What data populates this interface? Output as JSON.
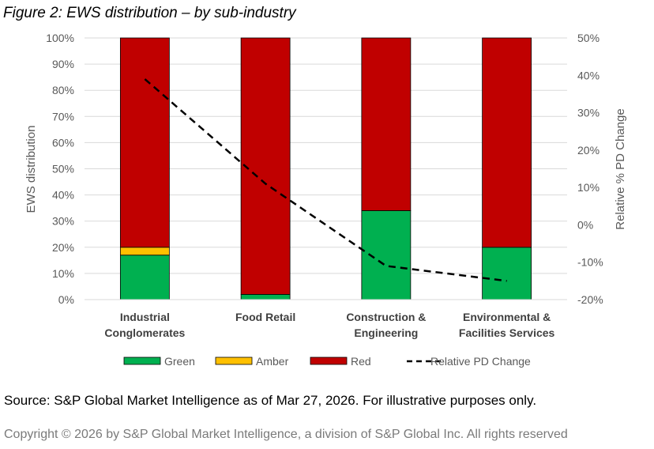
{
  "figure_title": "Figure 2: EWS distribution – by sub-industry",
  "source_text": "Source: S&P Global Market Intelligence as of Mar 27, 2026. For illustrative purposes only.",
  "copyright_text": "Copyright © 2026 by S&P Global Market Intelligence, a division of S&P Global Inc. All rights reserved",
  "chart_data": {
    "type": "bar",
    "stacked": true,
    "title": "Figure 2: EWS distribution – by sub-industry",
    "categories": [
      [
        "Industrial",
        "Conglomerates"
      ],
      [
        "Food Retail"
      ],
      [
        "Construction &",
        "Engineering"
      ],
      [
        "Environmental &",
        "Facilities Services"
      ]
    ],
    "series": [
      {
        "name": "Green",
        "color": "#00b050",
        "values": [
          17,
          2,
          34,
          20
        ]
      },
      {
        "name": "Amber",
        "color": "#ffc000",
        "values": [
          3,
          0,
          0,
          0
        ]
      },
      {
        "name": "Red",
        "color": "#c00000",
        "values": [
          80,
          98,
          66,
          80
        ]
      }
    ],
    "line_series": {
      "name": "Relative PD Change",
      "color": "#000000",
      "style": "dashed",
      "axis": "secondary",
      "values": [
        39,
        11,
        -11,
        -15
      ]
    },
    "ylabel": "EWS distribution",
    "ylim": [
      0,
      100
    ],
    "yticks": [
      "0%",
      "10%",
      "20%",
      "30%",
      "40%",
      "50%",
      "60%",
      "70%",
      "80%",
      "90%",
      "100%"
    ],
    "y2label": "Relative %  PD Change",
    "y2lim": [
      -20,
      50
    ],
    "y2ticks": [
      "-20%",
      "-10%",
      "0%",
      "10%",
      "20%",
      "30%",
      "40%",
      "50%"
    ],
    "legend_position": "bottom",
    "legend": [
      "Green",
      "Amber",
      "Red",
      "Relative PD Change"
    ]
  }
}
